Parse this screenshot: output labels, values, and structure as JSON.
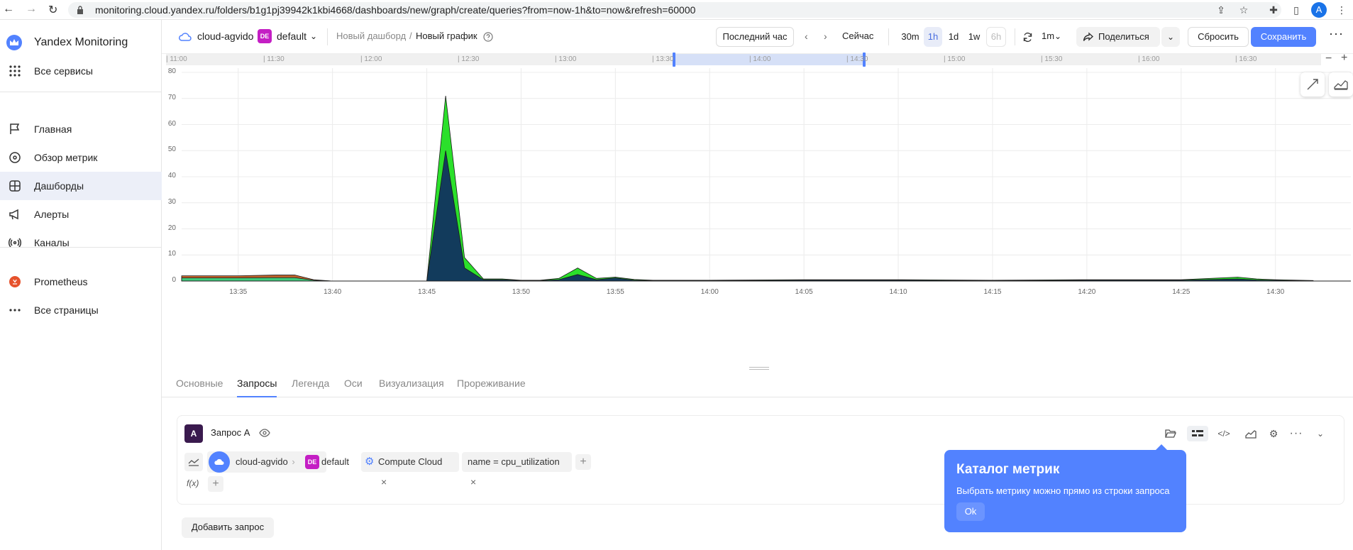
{
  "browser": {
    "url": "monitoring.cloud.yandex.ru/folders/b1g1pj39942k1kbi4668/dashboards/new/graph/create/queries?from=now-1h&to=now&refresh=60000",
    "avatar": "A"
  },
  "sidebar": {
    "brand": "Yandex Monitoring",
    "all_services": "Все сервисы",
    "items": [
      {
        "label": "Главная",
        "icon": "flag-icon"
      },
      {
        "label": "Обзор метрик",
        "icon": "compass-icon"
      },
      {
        "label": "Дашборды",
        "icon": "dashboard-icon",
        "active": true
      },
      {
        "label": "Алерты",
        "icon": "megaphone-icon"
      },
      {
        "label": "Каналы",
        "icon": "broadcast-icon"
      }
    ],
    "prometheus": "Prometheus",
    "all_pages": "Все страницы"
  },
  "header": {
    "cloud": "cloud-agvido",
    "folder_badge": "DE",
    "folder": "default",
    "breadcrumb_dashboard": "Новый дашборд",
    "breadcrumb_sep": "/",
    "breadcrumb_graph": "Новый график",
    "range_label": "Последний час",
    "now_label": "Сейчас",
    "ranges": [
      "30m",
      "1h",
      "1d",
      "1w",
      "6h"
    ],
    "selected_range": "1h",
    "refresh": "1m",
    "share": "Поделиться",
    "reset": "Сбросить",
    "save": "Сохранить"
  },
  "timeline": {
    "labels": [
      "11:00",
      "11:30",
      "12:00",
      "12:30",
      "13:00",
      "13:30",
      "14:00",
      "14:30",
      "15:00",
      "15:30",
      "16:00",
      "16:30"
    ]
  },
  "chart_data": {
    "type": "area",
    "x": [
      "13:32",
      "13:33",
      "13:35",
      "13:37",
      "13:38",
      "13:39",
      "13:40",
      "13:42",
      "13:44",
      "13:45",
      "13:46",
      "13:47",
      "13:48",
      "13:49",
      "13:50",
      "13:51",
      "13:52",
      "13:53",
      "13:54",
      "13:55",
      "13:56",
      "13:57",
      "14:00",
      "14:05",
      "14:10",
      "14:15",
      "14:20",
      "14:25",
      "14:28",
      "14:29",
      "14:30",
      "14:32"
    ],
    "x_ticks": [
      "13:35",
      "13:40",
      "13:45",
      "13:50",
      "13:55",
      "14:00",
      "14:05",
      "14:10",
      "14:15",
      "14:20",
      "14:25",
      "14:30"
    ],
    "y_ticks": [
      0,
      10,
      20,
      30,
      40,
      50,
      60,
      70,
      80
    ],
    "ylim": [
      0,
      80
    ],
    "series": [
      {
        "color": "#c0622b",
        "values": [
          2,
          2,
          2,
          2.3,
          2.3,
          0.5,
          0,
          0,
          0,
          0,
          0,
          0,
          0,
          0,
          0,
          0,
          0,
          0,
          0,
          0,
          0,
          0,
          0,
          0,
          0,
          0,
          0,
          0,
          0,
          0,
          0,
          0
        ]
      },
      {
        "color": "#3ec97a",
        "values": [
          1.2,
          1.2,
          1.2,
          1.3,
          1.3,
          0.3,
          0,
          0,
          0,
          0,
          0,
          0,
          0,
          0,
          0,
          0,
          0,
          0,
          0,
          0,
          0,
          0,
          0,
          0,
          0,
          0,
          0,
          0,
          0,
          0,
          0,
          0
        ]
      },
      {
        "color": "#2be02b",
        "values": [
          0,
          0,
          0,
          0,
          0,
          0,
          0,
          0,
          0,
          0,
          71,
          9,
          0.8,
          0.8,
          0.3,
          0.3,
          1,
          5,
          1,
          1.5,
          0.6,
          0.3,
          0.3,
          0.5,
          0.5,
          0.3,
          0.5,
          0.5,
          1.5,
          0.8,
          0.5,
          0.2
        ]
      },
      {
        "color": "#123b5c",
        "values": [
          0,
          0,
          0,
          0,
          0,
          0,
          0,
          0,
          0,
          0,
          50,
          5,
          0.5,
          0.5,
          0.2,
          0.2,
          0.5,
          2.5,
          0.5,
          1.2,
          0.3,
          0.2,
          0.2,
          0.3,
          0.3,
          0.2,
          0.3,
          0.3,
          0.8,
          0.4,
          0.3,
          0.1
        ]
      }
    ]
  },
  "tabs": [
    "Основные",
    "Запросы",
    "Легенда",
    "Оси",
    "Визуализация",
    "Прореживание"
  ],
  "active_tab": "Запросы",
  "query": {
    "badge": "A",
    "title": "Запрос A",
    "cloud": "cloud-agvido",
    "folder_badge": "DE",
    "folder": "default",
    "service": "Compute Cloud",
    "filter": "name = cpu_utilization",
    "func_label": "f(x)",
    "add": "+",
    "add_query": "Добавить запрос"
  },
  "tooltip": {
    "title": "Каталог метрик",
    "text": "Выбрать метрику можно прямо из строки запроса",
    "ok": "Ok"
  }
}
